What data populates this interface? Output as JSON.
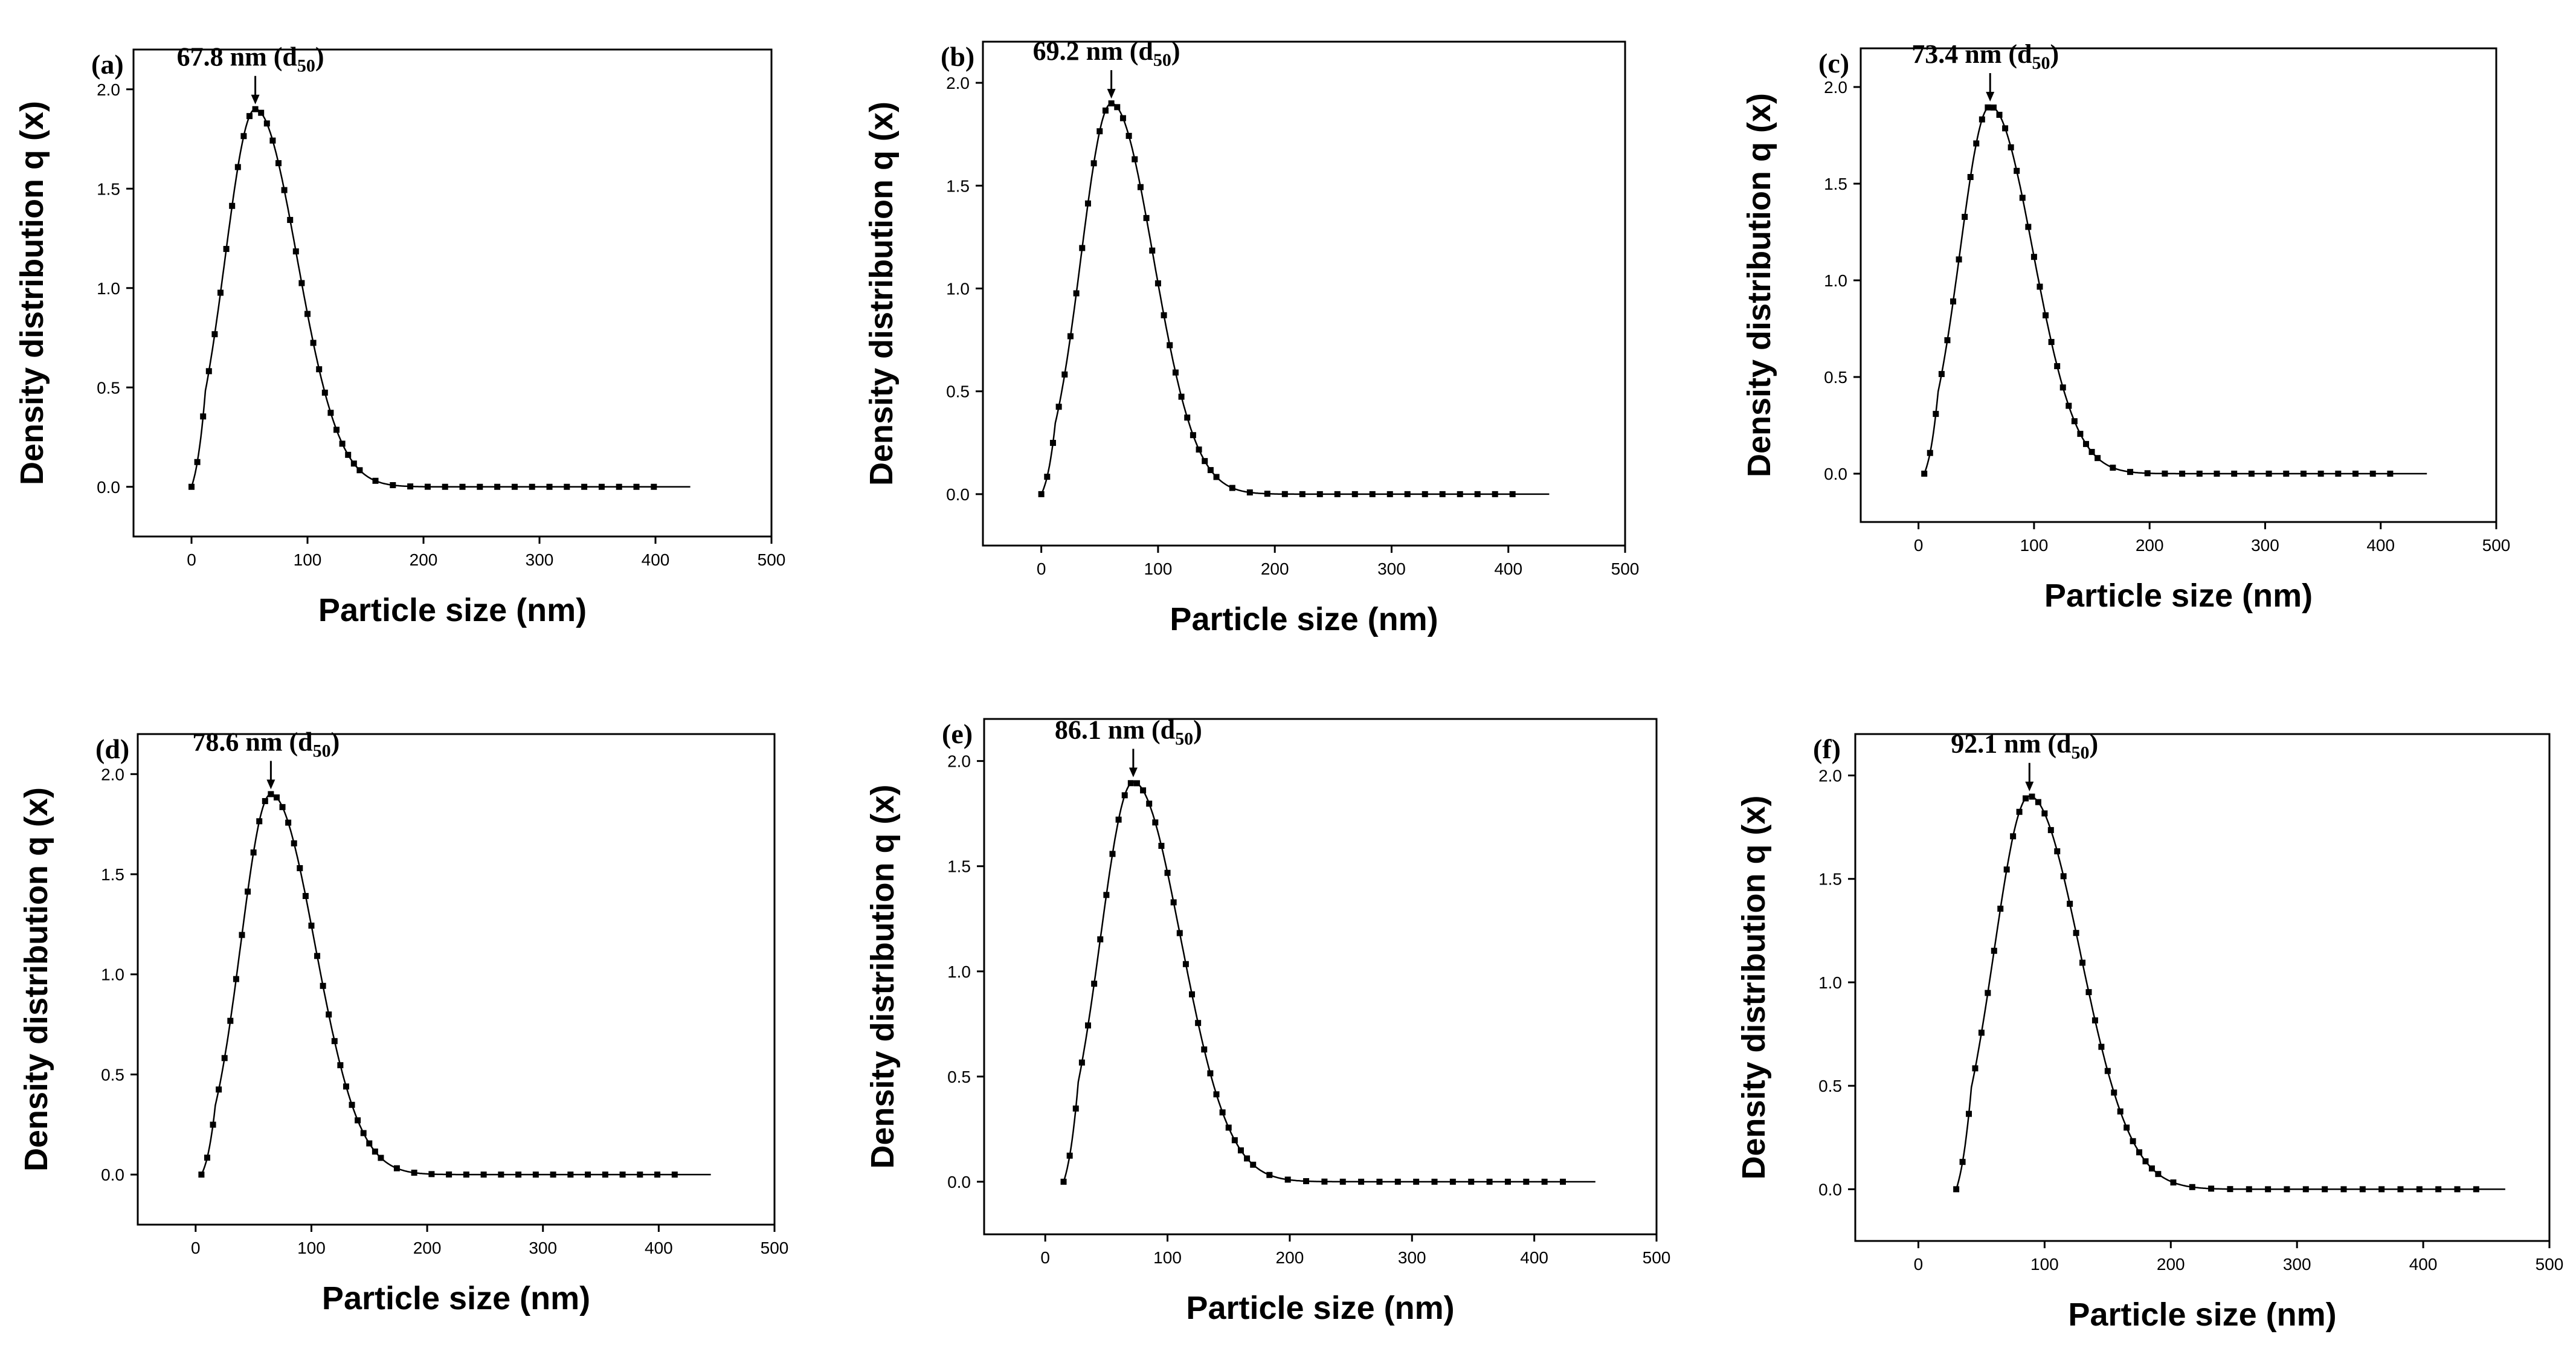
{
  "chart_data": [
    {
      "type": "line",
      "panel_label": "(a)",
      "annotation": {
        "value_text": "67.8 nm",
        "sub_text": "50"
      },
      "xlabel": "Particle size (nm)",
      "ylabel": "Density distribution q (x)",
      "xlim": [
        -50,
        500
      ],
      "ylim": [
        -0.25,
        2.2
      ],
      "xticks": [
        "0",
        "100",
        "200",
        "300",
        "400",
        "500"
      ],
      "yticks": [
        "0.0",
        "0.5",
        "1.0",
        "1.5",
        "2.0"
      ],
      "series": [
        {
          "name": "q(x)",
          "d50": 67.8,
          "peak_x": 55,
          "peak_y": 1.9,
          "start_x": 0,
          "end_x": 430,
          "sigma_left": 26,
          "sigma_right": 36
        }
      ]
    },
    {
      "type": "line",
      "panel_label": "(b)",
      "annotation": {
        "value_text": "69.2 nm",
        "sub_text": "50"
      },
      "xlabel": "Particle size (nm)",
      "ylabel": "Density distribution q (x)",
      "xlim": [
        -50,
        500
      ],
      "ylim": [
        -0.25,
        2.2
      ],
      "xticks": [
        "0",
        "100",
        "200",
        "300",
        "400",
        "500"
      ],
      "yticks": [
        "0.0",
        "0.5",
        "1.0",
        "1.5",
        "2.0"
      ],
      "series": [
        {
          "name": "q(x)",
          "d50": 69.2,
          "peak_x": 60,
          "peak_y": 1.9,
          "start_x": 0,
          "end_x": 435,
          "sigma_left": 26,
          "sigma_right": 36
        }
      ]
    },
    {
      "type": "line",
      "panel_label": "(c)",
      "annotation": {
        "value_text": "73.4 nm",
        "sub_text": "50"
      },
      "xlabel": "Particle size (nm)",
      "ylabel": "Density distribution q (x)",
      "xlim": [
        -50,
        500
      ],
      "ylim": [
        -0.25,
        2.2
      ],
      "xticks": [
        "0",
        "100",
        "200",
        "300",
        "400",
        "500"
      ],
      "yticks": [
        "0.0",
        "0.5",
        "1.0",
        "1.5",
        "2.0"
      ],
      "series": [
        {
          "name": "q(x)",
          "d50": 73.4,
          "peak_x": 62,
          "peak_y": 1.9,
          "start_x": 5,
          "end_x": 440,
          "sigma_left": 26,
          "sigma_right": 37
        }
      ]
    },
    {
      "type": "line",
      "panel_label": "(d)",
      "annotation": {
        "value_text": "78.6 nm",
        "sub_text": "50"
      },
      "xlabel": "Particle size (nm)",
      "ylabel": "Density distribution q (x)",
      "xlim": [
        -50,
        500
      ],
      "ylim": [
        -0.25,
        2.2
      ],
      "xticks": [
        "0",
        "100",
        "200",
        "300",
        "400",
        "500"
      ],
      "yticks": [
        "0.0",
        "0.5",
        "1.0",
        "1.5",
        "2.0"
      ],
      "series": [
        {
          "name": "q(x)",
          "d50": 78.6,
          "peak_x": 65,
          "peak_y": 1.9,
          "start_x": 5,
          "end_x": 445,
          "sigma_left": 26,
          "sigma_right": 38
        }
      ]
    },
    {
      "type": "line",
      "panel_label": "(e)",
      "annotation": {
        "value_text": "86.1 nm",
        "sub_text": "50"
      },
      "xlabel": "Particle size (nm)",
      "ylabel": "Density distribution q (x)",
      "xlim": [
        -50,
        500
      ],
      "ylim": [
        -0.25,
        2.2
      ],
      "xticks": [
        "0",
        "100",
        "200",
        "300",
        "400",
        "500"
      ],
      "yticks": [
        "0.0",
        "0.5",
        "1.0",
        "1.5",
        "2.0"
      ],
      "series": [
        {
          "name": "q(x)",
          "d50": 86.1,
          "peak_x": 72,
          "peak_y": 1.9,
          "start_x": 15,
          "end_x": 450,
          "sigma_left": 27,
          "sigma_right": 39
        }
      ]
    },
    {
      "type": "line",
      "panel_label": "(f)",
      "annotation": {
        "value_text": "92.1 nm",
        "sub_text": "50"
      },
      "xlabel": "Particle size (nm)",
      "ylabel": "Density distribution q (x)",
      "xlim": [
        -50,
        500
      ],
      "ylim": [
        -0.25,
        2.2
      ],
      "xticks": [
        "0",
        "100",
        "200",
        "300",
        "400",
        "500"
      ],
      "yticks": [
        "0.0",
        "0.5",
        "1.0",
        "1.5",
        "2.0"
      ],
      "series": [
        {
          "name": "q(x)",
          "d50": 92.1,
          "peak_x": 88,
          "peak_y": 1.9,
          "start_x": 30,
          "end_x": 465,
          "sigma_left": 28,
          "sigma_right": 40
        }
      ]
    }
  ]
}
